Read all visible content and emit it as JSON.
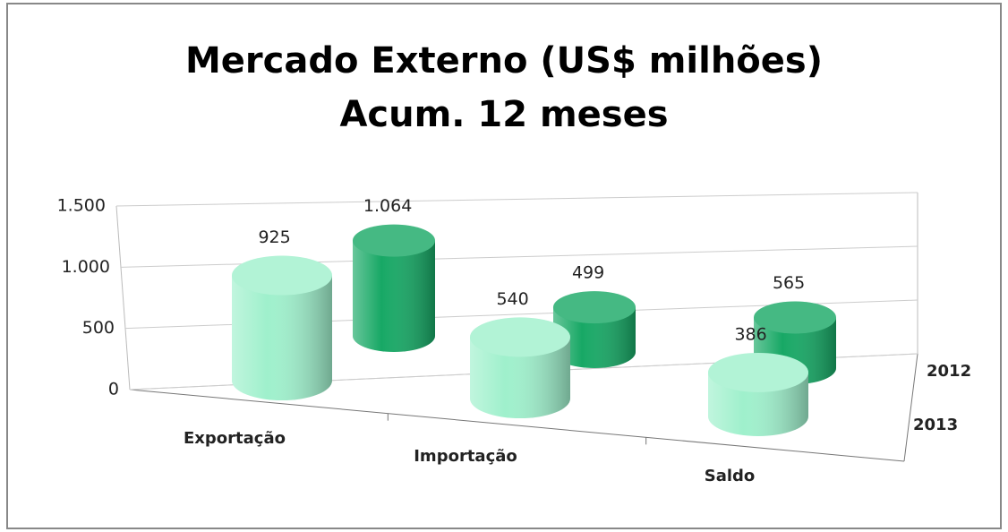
{
  "chart_data": {
    "type": "bar3d",
    "title": "Mercado Externo (US$ milhões) Acum. 12 meses",
    "categories": [
      "Exportação",
      "Importação",
      "Saldo"
    ],
    "series": [
      {
        "name": "2013",
        "color": "#9ff0cc",
        "values": [
          925,
          540,
          386
        ],
        "value_labels": [
          "925",
          "540",
          "386"
        ]
      },
      {
        "name": "2012",
        "color": "#17a865",
        "values": [
          1064,
          499,
          565
        ],
        "value_labels": [
          "1.064",
          "499",
          "565"
        ]
      }
    ],
    "ylim": [
      0,
      1500
    ],
    "yticks": [
      0,
      500,
      {
        "value": 1000,
        "label": "1.000"
      },
      {
        "value": 1500,
        "label": "1.500"
      }
    ],
    "grid": true
  }
}
